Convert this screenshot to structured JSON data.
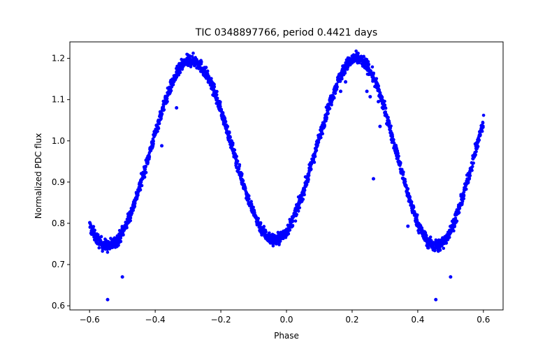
{
  "chart_data": {
    "type": "scatter",
    "title": "TIC 0348897766, period 0.4421 days",
    "xlabel": "Phase",
    "ylabel": "Normalized PDC flux",
    "xlim": [
      -0.66,
      0.66
    ],
    "ylim": [
      0.59,
      1.24
    ],
    "xticks": [
      -0.6,
      -0.4,
      -0.2,
      0.0,
      0.2,
      0.4,
      0.6
    ],
    "xtick_labels": [
      "−0.6",
      "−0.4",
      "−0.2",
      "0.0",
      "0.2",
      "0.4",
      "0.6"
    ],
    "yticks": [
      0.6,
      0.7,
      0.8,
      0.9,
      1.0,
      1.1,
      1.2
    ],
    "ytick_labels": [
      "0.6",
      "0.7",
      "0.8",
      "0.9",
      "1.0",
      "1.1",
      "1.2"
    ],
    "grid": false,
    "marker_color": "#0000ff",
    "model": {
      "description": "Folded light curve of a W UMa-type eclipsing binary; phase range -0.6 to 0.6",
      "phase_start": -0.6,
      "phase_end": 0.6,
      "minima": [
        {
          "phase": -0.545,
          "flux": 0.745
        },
        {
          "phase": -0.035,
          "flux": 0.76
        },
        {
          "phase": 0.455,
          "flux": 0.745
        }
      ],
      "maxima": [
        {
          "phase": -0.29,
          "flux": 1.195
        },
        {
          "phase": 0.215,
          "flux": 1.2
        }
      ],
      "scatter": 0.012
    },
    "outliers": [
      {
        "x": -0.545,
        "y": 0.615
      },
      {
        "x": -0.5,
        "y": 0.67
      },
      {
        "x": -0.38,
        "y": 0.988
      },
      {
        "x": -0.335,
        "y": 1.08
      },
      {
        "x": 0.165,
        "y": 1.12
      },
      {
        "x": 0.18,
        "y": 1.143
      },
      {
        "x": 0.245,
        "y": 1.12
      },
      {
        "x": 0.255,
        "y": 1.107
      },
      {
        "x": 0.265,
        "y": 0.908
      },
      {
        "x": 0.28,
        "y": 1.095
      },
      {
        "x": 0.285,
        "y": 1.035
      },
      {
        "x": 0.37,
        "y": 0.793
      },
      {
        "x": 0.455,
        "y": 0.615
      },
      {
        "x": 0.5,
        "y": 0.67
      }
    ]
  }
}
